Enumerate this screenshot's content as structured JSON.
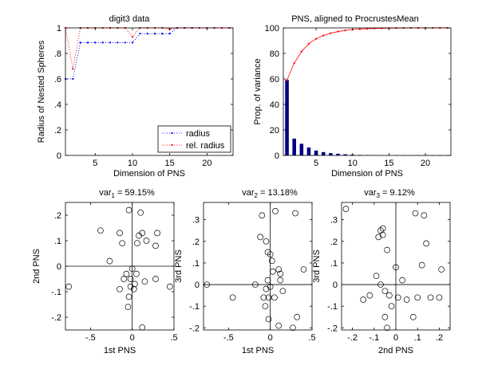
{
  "chart_data": [
    {
      "type": "line",
      "title": "digit3 data",
      "xlabel": "Dimension of PNS",
      "ylabel": "Radius of Nested Spheres",
      "xlim": [
        1,
        23.5
      ],
      "ylim": [
        0,
        1
      ],
      "xticks": [
        5,
        10,
        15,
        20
      ],
      "yticks": [
        0,
        0.2,
        0.4,
        0.6,
        0.8,
        1
      ],
      "legend_position": "bottom-right",
      "series": [
        {
          "name": "radius",
          "color": "#0000ff",
          "x": [
            1,
            2,
            3,
            4,
            5,
            6,
            7,
            8,
            9,
            10,
            11,
            12,
            13,
            14,
            15,
            16,
            17,
            18,
            19,
            20,
            21,
            22,
            23
          ],
          "y": [
            0.6,
            0.6,
            0.885,
            0.885,
            0.885,
            0.885,
            0.885,
            0.885,
            0.885,
            0.885,
            0.955,
            0.955,
            0.955,
            0.955,
            0.955,
            1,
            1,
            1,
            1,
            1,
            1,
            1,
            1
          ]
        },
        {
          "name": "rel. radius",
          "color": "#ff0000",
          "x": [
            1,
            2,
            3,
            4,
            5,
            6,
            7,
            8,
            9,
            10,
            11,
            12,
            13,
            14,
            15,
            16,
            17,
            18,
            19,
            20,
            21,
            22,
            23
          ],
          "y": [
            1,
            0.68,
            1,
            1,
            1,
            1,
            1,
            1,
            1,
            0.93,
            1,
            1,
            1,
            1,
            0.99,
            1,
            1,
            1,
            1,
            1,
            1,
            1,
            1
          ]
        }
      ]
    },
    {
      "type": "bar",
      "title": "PNS, aligned to ProcrustesMean",
      "xlabel": "Dimension of PNS",
      "ylabel": "Prop. of variance",
      "xlim": [
        0.5,
        23.5
      ],
      "ylim": [
        0,
        100
      ],
      "xticks": [
        5,
        10,
        15,
        20
      ],
      "yticks": [
        0,
        20,
        40,
        60,
        80,
        100
      ],
      "bar_color": "#000080",
      "line_color": "#ff0000",
      "categories": [
        1,
        2,
        3,
        4,
        5,
        6,
        7,
        8,
        9,
        10,
        11,
        12,
        13,
        14,
        15,
        16,
        17,
        18,
        19,
        20,
        21,
        22,
        23
      ],
      "values": [
        59.15,
        13.18,
        9.12,
        6.2,
        3.8,
        2.6,
        1.8,
        1.3,
        0.9,
        0.6,
        0.4,
        0.3,
        0.2,
        0.15,
        0.1,
        0.08,
        0.06,
        0.05,
        0.04,
        0.03,
        0.02,
        0.01,
        0.01
      ],
      "cumulative": [
        59.15,
        72.33,
        81.45,
        87.65,
        91.45,
        94.05,
        95.85,
        97.15,
        98.05,
        98.65,
        99.05,
        99.35,
        99.55,
        99.7,
        99.8,
        99.88,
        99.94,
        99.99,
        100,
        100,
        100,
        100,
        100
      ]
    },
    {
      "type": "scatter",
      "title_prefix": "var",
      "title_sub": "1",
      "title_suffix": " = 59.15%",
      "xlabel": "1st PNS",
      "ylabel": "2nd PNS",
      "xlim": [
        -0.8,
        0.5
      ],
      "ylim": [
        -0.25,
        0.25
      ],
      "xticks": [
        -0.5,
        0,
        0.5
      ],
      "yticks": [
        -0.2,
        -0.1,
        0,
        0.1,
        0.2
      ],
      "points": [
        [
          -0.76,
          -0.08
        ],
        [
          -0.38,
          0.14
        ],
        [
          -0.27,
          0.02
        ],
        [
          -0.15,
          0.13
        ],
        [
          -0.12,
          0.09
        ],
        [
          -0.15,
          -0.09
        ],
        [
          -0.04,
          0.22
        ],
        [
          0.1,
          0.21
        ],
        [
          0.12,
          0.13
        ],
        [
          0.17,
          0.1
        ],
        [
          0.3,
          0.13
        ],
        [
          0.28,
          0.08
        ],
        [
          0.06,
          0.09
        ],
        [
          0.08,
          0.12
        ],
        [
          -0.07,
          -0.03
        ],
        [
          0.0,
          -0.01
        ],
        [
          -0.02,
          -0.05
        ],
        [
          0.03,
          -0.07
        ],
        [
          0.02,
          -0.09
        ],
        [
          -0.04,
          -0.12
        ],
        [
          -0.05,
          -0.16
        ],
        [
          0.12,
          -0.24
        ],
        [
          0.15,
          -0.06
        ],
        [
          0.28,
          -0.05
        ],
        [
          0.45,
          -0.08
        ],
        [
          -0.1,
          -0.05
        ],
        [
          0.05,
          -0.03
        ],
        [
          -0.02,
          -0.08
        ]
      ]
    },
    {
      "type": "scatter",
      "title_prefix": "var",
      "title_sub": "2",
      "title_suffix": " = 13.18%",
      "xlabel": "1st PNS",
      "ylabel": "3rd PNS",
      "xlim": [
        -0.8,
        0.5
      ],
      "ylim": [
        -0.21,
        0.38
      ],
      "xticks": [
        -0.5,
        0,
        0.5
      ],
      "yticks": [
        -0.2,
        -0.1,
        0,
        0.1,
        0.2,
        0.3
      ],
      "points": [
        [
          -0.76,
          0.0
        ],
        [
          -0.45,
          -0.06
        ],
        [
          -0.18,
          0.0
        ],
        [
          -0.12,
          0.22
        ],
        [
          -0.1,
          0.32
        ],
        [
          -0.05,
          0.2
        ],
        [
          -0.03,
          0.15
        ],
        [
          0.0,
          0.14
        ],
        [
          0.02,
          0.11
        ],
        [
          0.03,
          0.06
        ],
        [
          0.06,
          0.34
        ],
        [
          0.1,
          0.07
        ],
        [
          0.12,
          0.02
        ],
        [
          0.15,
          -0.03
        ],
        [
          0.05,
          -0.06
        ],
        [
          -0.02,
          -0.06
        ],
        [
          -0.08,
          -0.06
        ],
        [
          -0.05,
          -0.02
        ],
        [
          0.0,
          -0.01
        ],
        [
          -0.03,
          0.02
        ],
        [
          -0.06,
          -0.1
        ],
        [
          -0.02,
          -0.16
        ],
        [
          0.1,
          -0.19
        ],
        [
          0.3,
          0.33
        ],
        [
          0.4,
          0.07
        ],
        [
          0.32,
          -0.15
        ],
        [
          0.27,
          -0.2
        ],
        [
          0.12,
          0.05
        ]
      ]
    },
    {
      "type": "scatter",
      "title_prefix": "var",
      "title_sub": "3",
      "title_suffix": " = 9.12%",
      "xlabel": "2nd PNS",
      "ylabel": "3rd PNS",
      "xlim": [
        -0.25,
        0.25
      ],
      "ylim": [
        -0.21,
        0.38
      ],
      "xticks": [
        -0.2,
        -0.1,
        0,
        0.1,
        0.2
      ],
      "yticks": [
        -0.2,
        -0.1,
        0,
        0.1,
        0.2,
        0.3
      ],
      "points": [
        [
          -0.23,
          0.35
        ],
        [
          -0.15,
          -0.07
        ],
        [
          -0.12,
          -0.05
        ],
        [
          -0.08,
          0.22
        ],
        [
          -0.07,
          0.25
        ],
        [
          -0.06,
          0.23
        ],
        [
          -0.06,
          0.26
        ],
        [
          -0.04,
          0.16
        ],
        [
          -0.07,
          0.0
        ],
        [
          -0.05,
          -0.03
        ],
        [
          -0.03,
          -0.05
        ],
        [
          -0.02,
          -0.1
        ],
        [
          -0.05,
          -0.15
        ],
        [
          -0.04,
          -0.2
        ],
        [
          0.0,
          0.08
        ],
        [
          0.03,
          0.02
        ],
        [
          0.05,
          -0.07
        ],
        [
          0.09,
          0.33
        ],
        [
          0.13,
          0.32
        ],
        [
          0.14,
          0.19
        ],
        [
          0.12,
          0.09
        ],
        [
          0.1,
          -0.06
        ],
        [
          0.16,
          -0.06
        ],
        [
          0.2,
          -0.06
        ],
        [
          0.21,
          0.07
        ],
        [
          0.08,
          -0.15
        ],
        [
          -0.09,
          0.04
        ],
        [
          0.01,
          -0.06
        ]
      ]
    }
  ]
}
